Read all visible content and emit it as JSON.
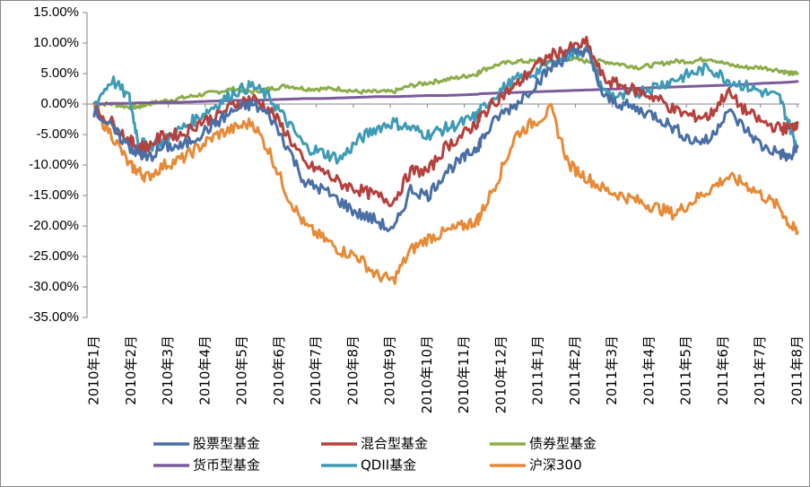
{
  "chart_data": {
    "type": "line",
    "title": "",
    "xlabel": "",
    "ylabel": "",
    "ylim": [
      -35,
      15
    ],
    "y_ticks": [
      "15.00%",
      "10.00%",
      "5.00%",
      "0.00%",
      "-5.00%",
      "-10.00%",
      "-15.00%",
      "-20.00%",
      "-25.00%",
      "-30.00%",
      "-35.00%"
    ],
    "y_tick_values": [
      15,
      10,
      5,
      0,
      -5,
      -10,
      -15,
      -20,
      -25,
      -30,
      -35
    ],
    "categories": [
      "2010年1月",
      "2010年2月",
      "2010年3月",
      "2010年4月",
      "2010年5月",
      "2010年6月",
      "2010年7月",
      "2010年8月",
      "2010年9月",
      "2010年10月",
      "2010年11月",
      "2010年12月",
      "2011年1月",
      "2011年2月",
      "2011年3月",
      "2011年4月",
      "2011年5月",
      "2011年6月",
      "2011年7月",
      "2011年8月"
    ],
    "x": [
      0,
      0.5,
      1,
      1.25,
      1.5,
      2,
      2.5,
      3,
      3.5,
      4,
      4.5,
      5,
      5.5,
      6,
      6.5,
      7,
      7.5,
      8,
      8.5,
      9,
      9.5,
      10,
      10.5,
      10.9,
      11,
      11.5,
      12,
      12.5,
      13,
      13.5,
      14,
      14.5,
      15,
      15.5,
      16,
      16.5,
      17,
      17.5,
      18,
      18.5,
      19,
      19.5,
      19.8,
      20
    ],
    "grid": false,
    "legend_position": "bottom",
    "series": [
      {
        "name": "股票型基金",
        "color": "#4a6fa5",
        "values": [
          -1,
          -4,
          -7,
          -8,
          -9,
          -7,
          -7,
          -5,
          -3,
          -1,
          0,
          -2,
          -7,
          -13,
          -14,
          -16,
          -18,
          -19,
          -21,
          -14,
          -15,
          -11,
          -9,
          -7,
          -6,
          -2,
          0,
          3,
          6,
          8,
          9,
          1,
          0,
          -1,
          -2,
          -4,
          -6,
          -6,
          -1,
          -4,
          -7,
          -8,
          -9,
          -7
        ]
      },
      {
        "name": "混合型基金",
        "color": "#b5413e",
        "values": [
          -1,
          -3,
          -6,
          -7,
          -7,
          -5,
          -5,
          -3,
          -2,
          0,
          1,
          -1,
          -5,
          -10,
          -11,
          -13,
          -14,
          -15,
          -16,
          -11,
          -11,
          -7,
          -5,
          -3,
          -2,
          1,
          3,
          6,
          8,
          9,
          10,
          4,
          3,
          2,
          1,
          -1,
          -2,
          -2,
          2,
          -1,
          -3,
          -4,
          -4,
          -3
        ]
      },
      {
        "name": "债券型基金",
        "color": "#8cad4a",
        "values": [
          0,
          0,
          -0.5,
          -0.5,
          0,
          0.5,
          1,
          1.5,
          2,
          2.5,
          2,
          2.5,
          3,
          2.5,
          2.5,
          2.5,
          2,
          2,
          2,
          3,
          3.5,
          4,
          4.5,
          5,
          5.5,
          6.5,
          7,
          7,
          7,
          7.5,
          7,
          7,
          6.5,
          6,
          6.5,
          7,
          7,
          7.5,
          6.5,
          6,
          6,
          5.5,
          5,
          5
        ]
      },
      {
        "name": "货币型基金",
        "color": "#7c5a9b",
        "values": [
          0,
          0.1,
          0.1,
          0.2,
          0.2,
          0.3,
          0.3,
          0.4,
          0.5,
          0.6,
          0.6,
          0.7,
          0.8,
          0.9,
          0.9,
          1,
          1.1,
          1.2,
          1.2,
          1.3,
          1.4,
          1.4,
          1.5,
          1.6,
          1.7,
          1.8,
          1.9,
          2,
          2.1,
          2.2,
          2.3,
          2.4,
          2.5,
          2.6,
          2.7,
          2.8,
          2.9,
          3,
          3.1,
          3.2,
          3.4,
          3.5,
          3.6,
          3.7
        ]
      },
      {
        "name": "QDII基金",
        "color": "#3f9bb5",
        "values": [
          0,
          4,
          1,
          -6,
          -7,
          -6,
          -4,
          -2,
          0,
          2,
          3,
          1,
          -3,
          -7,
          -8,
          -9,
          -6,
          -4,
          -3,
          -4,
          -5,
          -4,
          -3,
          -2,
          -1,
          2,
          4,
          5,
          7,
          8,
          9,
          2,
          1,
          2,
          3,
          4,
          5,
          6,
          4,
          3,
          2,
          1,
          -4,
          -7
        ]
      },
      {
        "name": "沪深300",
        "color": "#e68a37",
        "values": [
          -1,
          -5,
          -10,
          -11,
          -12,
          -10,
          -9,
          -7,
          -5,
          -4,
          -3,
          -8,
          -15,
          -20,
          -22,
          -24,
          -25,
          -28,
          -29,
          -24,
          -22,
          -21,
          -20,
          -19,
          -18,
          -12,
          -5,
          -3,
          -1,
          -10,
          -12,
          -14,
          -15,
          -16,
          -17,
          -18,
          -16,
          -14,
          -12,
          -13,
          -15,
          -17,
          -20,
          -21
        ]
      }
    ]
  }
}
